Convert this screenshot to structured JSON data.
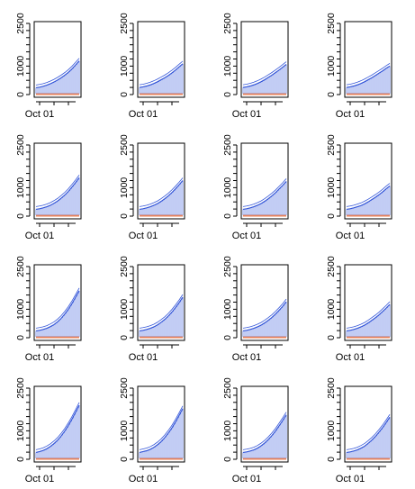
{
  "colors": {
    "series": "#3456d8",
    "baseline": "#e8825a",
    "axis": "#000000",
    "background": "#ffffff"
  },
  "layout": {
    "rows": 4,
    "cols": 4,
    "panel_order": "row-major"
  },
  "chart_data": [
    {
      "type": "line",
      "panel": 1,
      "ylim": [
        0,
        2500
      ],
      "yticks": [
        0,
        1000,
        2000,
        2500
      ],
      "xtick_label": "Oct 01",
      "series": [
        {
          "values": [
            240,
            260,
            290,
            330,
            380,
            440,
            510,
            590,
            680,
            780,
            900,
            1040,
            1180
          ]
        },
        {
          "values": [
            0,
            0,
            0,
            0,
            0,
            0,
            0,
            0,
            0,
            0,
            0,
            0,
            0
          ]
        }
      ]
    },
    {
      "type": "line",
      "panel": 2,
      "ylim": [
        0,
        2500
      ],
      "yticks": [
        0,
        1000,
        2000,
        2500
      ],
      "xtick_label": "Oct 01",
      "series": [
        {
          "values": [
            250,
            270,
            300,
            340,
            390,
            450,
            520,
            590,
            670,
            760,
            860,
            970,
            1080
          ]
        },
        {
          "values": [
            0,
            0,
            0,
            0,
            0,
            0,
            0,
            0,
            0,
            0,
            0,
            0,
            0
          ]
        }
      ]
    },
    {
      "type": "line",
      "panel": 3,
      "ylim": [
        0,
        2500
      ],
      "yticks": [
        0,
        1000,
        2000,
        2500
      ],
      "xtick_label": "Oct 01",
      "series": [
        {
          "values": [
            250,
            270,
            300,
            340,
            390,
            450,
            520,
            600,
            680,
            770,
            860,
            960,
            1060
          ]
        },
        {
          "values": [
            0,
            0,
            0,
            0,
            0,
            0,
            0,
            0,
            0,
            0,
            0,
            0,
            0
          ]
        }
      ]
    },
    {
      "type": "line",
      "panel": 4,
      "ylim": [
        0,
        2500
      ],
      "yticks": [
        0,
        1000,
        2000,
        2500
      ],
      "xtick_label": "Oct 01",
      "series": [
        {
          "values": [
            250,
            270,
            300,
            340,
            390,
            450,
            520,
            590,
            670,
            750,
            830,
            920,
            1000
          ]
        },
        {
          "values": [
            0,
            0,
            0,
            0,
            0,
            0,
            0,
            0,
            0,
            0,
            0,
            0,
            0
          ]
        }
      ]
    },
    {
      "type": "line",
      "panel": 5,
      "ylim": [
        0,
        2500
      ],
      "yticks": [
        0,
        1000,
        2000,
        2500
      ],
      "xtick_label": "Oct 01",
      "series": [
        {
          "values": [
            240,
            260,
            290,
            330,
            380,
            450,
            530,
            630,
            740,
            870,
            1020,
            1180,
            1350
          ]
        },
        {
          "values": [
            0,
            0,
            0,
            0,
            0,
            0,
            0,
            0,
            0,
            0,
            0,
            0,
            0
          ]
        }
      ]
    },
    {
      "type": "line",
      "panel": 6,
      "ylim": [
        0,
        2500
      ],
      "yticks": [
        0,
        1000,
        2000,
        2500
      ],
      "xtick_label": "Oct 01",
      "series": [
        {
          "values": [
            240,
            260,
            290,
            330,
            380,
            440,
            520,
            610,
            710,
            830,
            960,
            1100,
            1250
          ]
        },
        {
          "values": [
            0,
            0,
            0,
            0,
            0,
            0,
            0,
            0,
            0,
            0,
            0,
            0,
            0
          ]
        }
      ]
    },
    {
      "type": "line",
      "panel": 7,
      "ylim": [
        0,
        2500
      ],
      "yticks": [
        0,
        1000,
        2000,
        2500
      ],
      "xtick_label": "Oct 01",
      "series": [
        {
          "values": [
            240,
            260,
            290,
            330,
            380,
            440,
            520,
            610,
            710,
            820,
            950,
            1080,
            1220
          ]
        },
        {
          "values": [
            0,
            0,
            0,
            0,
            0,
            0,
            0,
            0,
            0,
            0,
            0,
            0,
            0
          ]
        }
      ]
    },
    {
      "type": "line",
      "panel": 8,
      "ylim": [
        0,
        2500
      ],
      "yticks": [
        0,
        1000,
        2000,
        2500
      ],
      "xtick_label": "Oct 01",
      "series": [
        {
          "values": [
            240,
            260,
            290,
            330,
            370,
            430,
            500,
            580,
            660,
            750,
            850,
            960,
            1060
          ]
        },
        {
          "values": [
            0,
            0,
            0,
            0,
            0,
            0,
            0,
            0,
            0,
            0,
            0,
            0,
            0
          ]
        }
      ]
    },
    {
      "type": "line",
      "panel": 9,
      "ylim": [
        0,
        2500
      ],
      "yticks": [
        0,
        1000,
        2000,
        2500
      ],
      "xtick_label": "Oct 01",
      "series": [
        {
          "values": [
            240,
            260,
            290,
            330,
            390,
            460,
            560,
            680,
            830,
            1000,
            1200,
            1420,
            1650
          ]
        },
        {
          "values": [
            0,
            0,
            0,
            0,
            0,
            0,
            0,
            0,
            0,
            0,
            0,
            0,
            0
          ]
        }
      ]
    },
    {
      "type": "line",
      "panel": 10,
      "ylim": [
        0,
        2500
      ],
      "yticks": [
        0,
        1000,
        2000,
        2500
      ],
      "xtick_label": "Oct 01",
      "series": [
        {
          "values": [
            240,
            260,
            290,
            330,
            380,
            450,
            540,
            640,
            760,
            900,
            1060,
            1230,
            1420
          ]
        },
        {
          "values": [
            0,
            0,
            0,
            0,
            0,
            0,
            0,
            0,
            0,
            0,
            0,
            0,
            0
          ]
        }
      ]
    },
    {
      "type": "line",
      "panel": 11,
      "ylim": [
        0,
        2500
      ],
      "yticks": [
        0,
        1000,
        2000,
        2500
      ],
      "xtick_label": "Oct 01",
      "series": [
        {
          "values": [
            240,
            260,
            290,
            330,
            380,
            440,
            520,
            610,
            710,
            830,
            960,
            1100,
            1260
          ]
        },
        {
          "values": [
            0,
            0,
            0,
            0,
            0,
            0,
            0,
            0,
            0,
            0,
            0,
            0,
            0
          ]
        }
      ]
    },
    {
      "type": "line",
      "panel": 12,
      "ylim": [
        0,
        2500
      ],
      "yticks": [
        0,
        1000,
        2000,
        2500
      ],
      "xtick_label": "Oct 01",
      "series": [
        {
          "values": [
            240,
            260,
            290,
            330,
            380,
            440,
            520,
            610,
            700,
            800,
            920,
            1040,
            1170
          ]
        },
        {
          "values": [
            0,
            0,
            0,
            0,
            0,
            0,
            0,
            0,
            0,
            0,
            0,
            0,
            0
          ]
        }
      ]
    },
    {
      "type": "line",
      "panel": 13,
      "ylim": [
        0,
        2500
      ],
      "yticks": [
        0,
        1000,
        2000,
        2500
      ],
      "xtick_label": "Oct 01",
      "series": [
        {
          "values": [
            240,
            270,
            310,
            370,
            450,
            550,
            670,
            820,
            990,
            1190,
            1410,
            1650,
            1900
          ]
        },
        {
          "values": [
            0,
            0,
            0,
            0,
            0,
            0,
            0,
            0,
            0,
            0,
            0,
            0,
            0
          ]
        }
      ]
    },
    {
      "type": "line",
      "panel": 14,
      "ylim": [
        0,
        2500
      ],
      "yticks": [
        0,
        1000,
        2000,
        2500
      ],
      "xtick_label": "Oct 01",
      "series": [
        {
          "values": [
            240,
            270,
            300,
            350,
            420,
            510,
            620,
            760,
            920,
            1100,
            1310,
            1540,
            1780
          ]
        },
        {
          "values": [
            0,
            0,
            0,
            0,
            0,
            0,
            0,
            0,
            0,
            0,
            0,
            0,
            0
          ]
        }
      ]
    },
    {
      "type": "line",
      "panel": 15,
      "ylim": [
        0,
        2500
      ],
      "yticks": [
        0,
        1000,
        2000,
        2500
      ],
      "xtick_label": "Oct 01",
      "series": [
        {
          "values": [
            240,
            260,
            290,
            330,
            390,
            470,
            570,
            690,
            830,
            990,
            1170,
            1360,
            1560
          ]
        },
        {
          "values": [
            0,
            0,
            0,
            0,
            0,
            0,
            0,
            0,
            0,
            0,
            0,
            0,
            0
          ]
        }
      ]
    },
    {
      "type": "line",
      "panel": 16,
      "ylim": [
        0,
        2500
      ],
      "yticks": [
        0,
        1000,
        2000,
        2500
      ],
      "xtick_label": "Oct 01",
      "series": [
        {
          "values": [
            240,
            260,
            290,
            330,
            390,
            460,
            560,
            670,
            800,
            950,
            1110,
            1290,
            1480
          ]
        },
        {
          "values": [
            0,
            0,
            0,
            0,
            0,
            0,
            0,
            0,
            0,
            0,
            0,
            0,
            0
          ]
        }
      ]
    }
  ]
}
